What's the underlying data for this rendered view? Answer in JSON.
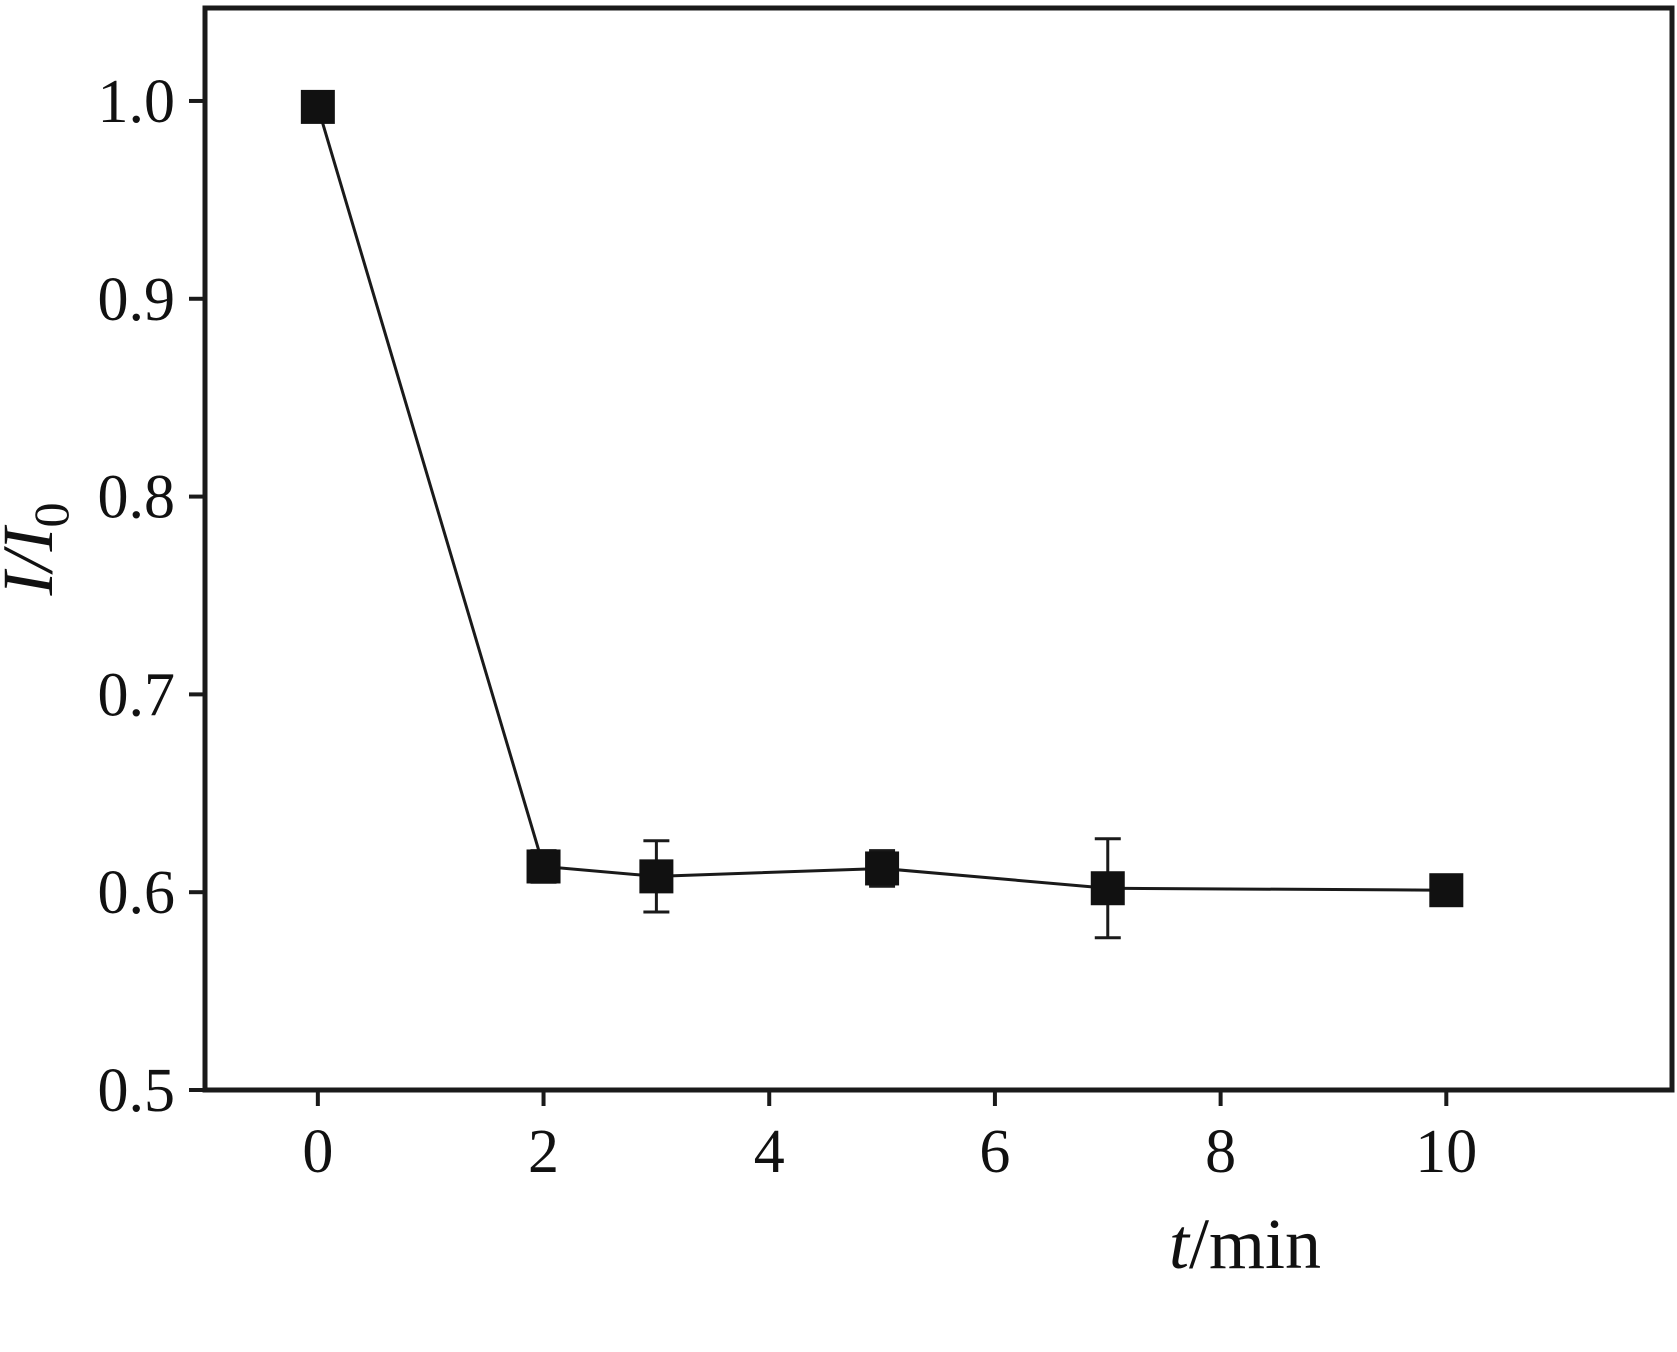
{
  "chart_data": {
    "type": "line",
    "title": "",
    "xlabel": "t/min",
    "xlabel_italic": "t",
    "xlabel_rest": "/min",
    "ylabel": "I/I0",
    "ylabel_italic": "I/I",
    "ylabel_sub": "0",
    "x": [
      0,
      2,
      3,
      5,
      7,
      10
    ],
    "y": [
      0.997,
      0.613,
      0.608,
      0.612,
      0.602,
      0.601
    ],
    "yerr": [
      0,
      0.008,
      0.018,
      0.009,
      0.025,
      0.006
    ],
    "xlim": [
      -1,
      12
    ],
    "ylim": [
      0.5,
      1.047
    ],
    "xticks": [
      0,
      2,
      4,
      6,
      8,
      10
    ],
    "yticks": [
      0.5,
      0.6,
      0.7,
      0.8,
      0.9,
      1.0
    ],
    "grid": false,
    "legend": "none",
    "marker": "filled-square",
    "line_color": "#1a1a1a",
    "marker_color": "#111111",
    "axis_color": "#1a1a1a",
    "background": "#ffffff"
  }
}
